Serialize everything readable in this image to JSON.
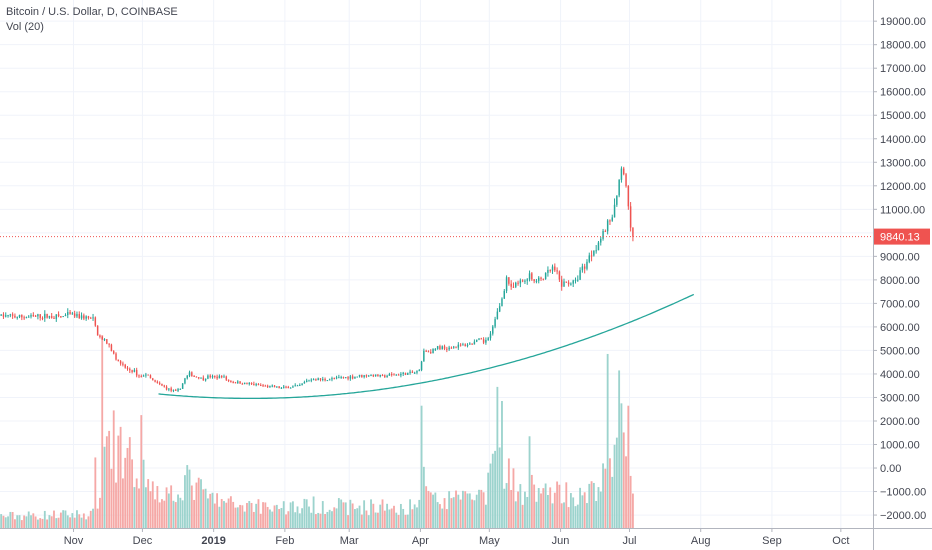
{
  "chart_data": {
    "type": "candlestick",
    "title": "Bitcoin / U.S. Dollar, D, COINBASE",
    "volume_label": "Vol (20)",
    "current_price": "9840.13",
    "y_ticks": [
      "19000.00",
      "18000.00",
      "17000.00",
      "16000.00",
      "15000.00",
      "14000.00",
      "13000.00",
      "12000.00",
      "11000.00",
      "10000.00",
      "9000.00",
      "8000.00",
      "7000.00",
      "6000.00",
      "5000.00",
      "4000.00",
      "3000.00",
      "2000.00",
      "1000.00",
      "0.00",
      "−1000.00",
      "−2000.00"
    ],
    "y_tick_values": [
      19000,
      18000,
      17000,
      16000,
      15000,
      14000,
      13000,
      12000,
      11000,
      10000,
      9000,
      8000,
      7000,
      6000,
      5000,
      4000,
      3000,
      2000,
      1000,
      0,
      -1000,
      -2000
    ],
    "ylim": [
      -2550,
      19900
    ],
    "x_ticks": [
      "Nov",
      "Dec",
      "2019",
      "Feb",
      "Mar",
      "Apr",
      "May",
      "Jun",
      "Jul",
      "Aug",
      "Sep",
      "Oct"
    ],
    "x_tick_days": [
      32,
      62,
      93,
      124,
      152,
      183,
      213,
      244,
      274,
      305,
      336,
      366
    ],
    "x_tick_bold": [
      false,
      false,
      true,
      false,
      false,
      false,
      false,
      false,
      false,
      false,
      false,
      false
    ],
    "xlim_days": [
      0,
      380
    ],
    "price_anchors": [
      [
        0,
        6480
      ],
      [
        8,
        6420
      ],
      [
        18,
        6450
      ],
      [
        26,
        6440
      ],
      [
        30,
        6520
      ],
      [
        38,
        6380
      ],
      [
        40,
        6300
      ],
      [
        42,
        5750
      ],
      [
        44,
        5500
      ],
      [
        46,
        5300
      ],
      [
        48,
        5000
      ],
      [
        50,
        4700
      ],
      [
        52,
        4400
      ],
      [
        55,
        4200
      ],
      [
        58,
        4100
      ],
      [
        60,
        3900
      ],
      [
        63,
        4000
      ],
      [
        66,
        3700
      ],
      [
        69,
        3550
      ],
      [
        72,
        3400
      ],
      [
        74,
        3300
      ],
      [
        76,
        3250
      ],
      [
        78,
        3400
      ],
      [
        80,
        3800
      ],
      [
        82,
        4000
      ],
      [
        84,
        3900
      ],
      [
        86,
        3850
      ],
      [
        88,
        3800
      ],
      [
        90,
        3900
      ],
      [
        93,
        3850
      ],
      [
        96,
        3900
      ],
      [
        99,
        3700
      ],
      [
        102,
        3650
      ],
      [
        106,
        3600
      ],
      [
        110,
        3550
      ],
      [
        114,
        3500
      ],
      [
        118,
        3450
      ],
      [
        122,
        3400
      ],
      [
        126,
        3450
      ],
      [
        130,
        3500
      ],
      [
        133,
        3700
      ],
      [
        136,
        3800
      ],
      [
        140,
        3750
      ],
      [
        145,
        3800
      ],
      [
        150,
        3850
      ],
      [
        155,
        3900
      ],
      [
        160,
        3950
      ],
      [
        165,
        3900
      ],
      [
        170,
        3950
      ],
      [
        175,
        4000
      ],
      [
        180,
        4050
      ],
      [
        182,
        4150
      ],
      [
        184,
        5000
      ],
      [
        186,
        4950
      ],
      [
        190,
        5100
      ],
      [
        196,
        5150
      ],
      [
        200,
        5200
      ],
      [
        205,
        5300
      ],
      [
        208,
        5450
      ],
      [
        210,
        5350
      ],
      [
        212,
        5600
      ],
      [
        214,
        6000
      ],
      [
        216,
        6600
      ],
      [
        218,
        7200
      ],
      [
        220,
        8100
      ],
      [
        222,
        7600
      ],
      [
        224,
        7800
      ],
      [
        226,
        7900
      ],
      [
        228,
        8000
      ],
      [
        230,
        8300
      ],
      [
        232,
        7900
      ],
      [
        236,
        8100
      ],
      [
        240,
        8500
      ],
      [
        242,
        8200
      ],
      [
        244,
        7800
      ],
      [
        247,
        7900
      ],
      [
        250,
        7900
      ],
      [
        252,
        8400
      ],
      [
        254,
        8600
      ],
      [
        256,
        9000
      ],
      [
        258,
        9300
      ],
      [
        260,
        9600
      ],
      [
        262,
        10000
      ],
      [
        264,
        10300
      ],
      [
        266,
        10800
      ],
      [
        268,
        11500
      ],
      [
        269,
        12100
      ],
      [
        270,
        12800
      ],
      [
        271,
        12400
      ],
      [
        272,
        11900
      ],
      [
        273,
        11200
      ],
      [
        274,
        10400
      ],
      [
        275,
        9840
      ]
    ],
    "volume_profile": [
      [
        0,
        500
      ],
      [
        40,
        600
      ],
      [
        42,
        1200
      ],
      [
        44,
        2200
      ],
      [
        47,
        4100
      ],
      [
        50,
        3200
      ],
      [
        53,
        2400
      ],
      [
        56,
        2800
      ],
      [
        60,
        1600
      ],
      [
        63,
        2500
      ],
      [
        66,
        1800
      ],
      [
        72,
        1400
      ],
      [
        78,
        1800
      ],
      [
        82,
        2000
      ],
      [
        90,
        1300
      ],
      [
        100,
        1000
      ],
      [
        110,
        1000
      ],
      [
        120,
        900
      ],
      [
        130,
        900
      ],
      [
        140,
        1000
      ],
      [
        150,
        900
      ],
      [
        160,
        900
      ],
      [
        170,
        900
      ],
      [
        180,
        900
      ],
      [
        183,
        2500
      ],
      [
        185,
        1600
      ],
      [
        190,
        1100
      ],
      [
        200,
        1200
      ],
      [
        210,
        1300
      ],
      [
        212,
        2000
      ],
      [
        216,
        3000
      ],
      [
        220,
        2500
      ],
      [
        224,
        1800
      ],
      [
        228,
        1500
      ],
      [
        232,
        2000
      ],
      [
        236,
        1400
      ],
      [
        240,
        1600
      ],
      [
        244,
        1600
      ],
      [
        250,
        1300
      ],
      [
        255,
        1300
      ],
      [
        260,
        1900
      ],
      [
        264,
        2200
      ],
      [
        268,
        3200
      ],
      [
        270,
        5000
      ],
      [
        272,
        3300
      ],
      [
        274,
        2000
      ],
      [
        275,
        1200
      ]
    ],
    "volume_spikes": [
      [
        41,
        3000
      ],
      [
        44,
        8200
      ],
      [
        46,
        3900
      ],
      [
        49,
        5000
      ],
      [
        52,
        4300
      ],
      [
        61,
        4800
      ],
      [
        183,
        5200
      ],
      [
        216,
        6000
      ],
      [
        218,
        5400
      ],
      [
        230,
        3900
      ],
      [
        264,
        7400
      ],
      [
        269,
        6700
      ],
      [
        270,
        5300
      ],
      [
        273,
        5200
      ]
    ],
    "trend_curve": {
      "x_days": [
        69,
        302
      ],
      "x_min_days": 109,
      "y_min": 2960,
      "y_at_start": 3150
    },
    "colors": {
      "up": "#26a69a",
      "down": "#ef5350",
      "up_volume": "#9cd3cd",
      "down_volume": "#f5a8a6",
      "trendline": "#26a69a",
      "price_line": "#ef5350",
      "grid": "#f0f3fa",
      "axis_text": "#434651"
    }
  }
}
